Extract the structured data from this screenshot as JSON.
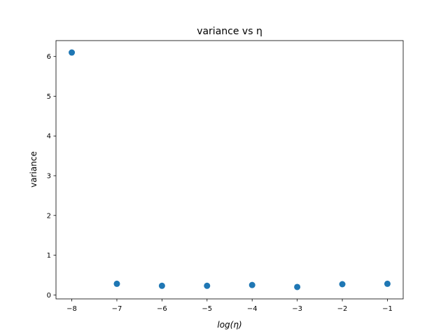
{
  "chart_data": {
    "type": "scatter",
    "title": "variance vs η",
    "xlabel": "log(η)",
    "ylabel": "variance",
    "xlim": [
      -8.35,
      -0.65
    ],
    "ylim": [
      -0.1,
      6.4
    ],
    "xticks": [
      -8,
      -7,
      -6,
      -5,
      -4,
      -3,
      -2,
      -1
    ],
    "xtick_labels": [
      "−8",
      "−7",
      "−6",
      "−5",
      "−4",
      "−3",
      "−2",
      "−1"
    ],
    "yticks": [
      0,
      1,
      2,
      3,
      4,
      5,
      6
    ],
    "ytick_labels": [
      "0",
      "1",
      "2",
      "3",
      "4",
      "5",
      "6"
    ],
    "grid": false,
    "color": "#1f77b4",
    "x": [
      -8,
      -7,
      -6,
      -5,
      -4,
      -3,
      -2,
      -1
    ],
    "y": [
      6.1,
      0.28,
      0.23,
      0.23,
      0.25,
      0.2,
      0.27,
      0.28
    ]
  }
}
